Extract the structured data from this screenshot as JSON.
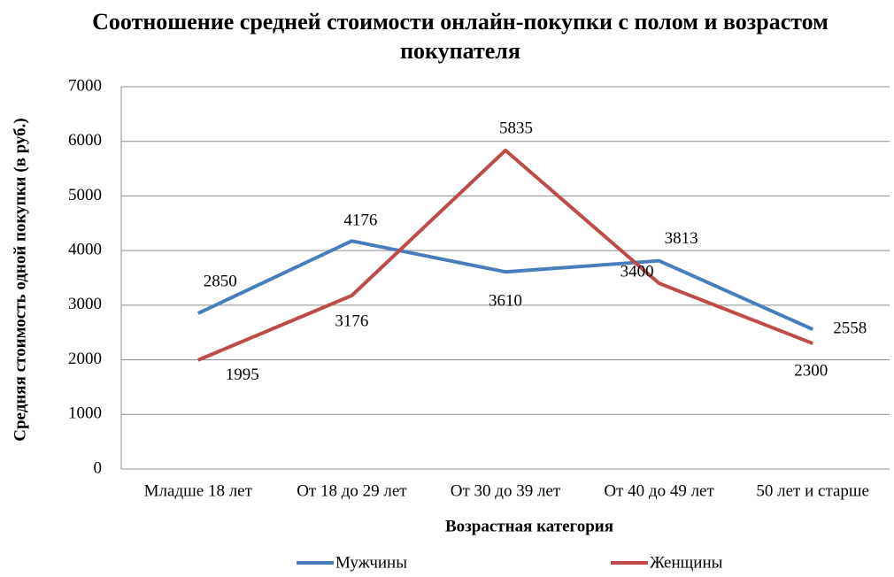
{
  "chart_data": {
    "type": "line",
    "title": "Соотношение средней стоимости онлайн-покупки с полом и возрастом покупателя",
    "x_label": "Возрастная категория",
    "y_label": "Средняя  стоимость одной покупки   (в руб.)",
    "categories": [
      "Младше 18 лет",
      "От 18 до 29 лет",
      "От 30 до 39 лет",
      "От 40 до 49 лет",
      "50 лет и старше"
    ],
    "series": [
      {
        "name": "Мужчины",
        "color": "#4a7ebb",
        "values": [
          2850,
          4176,
          3610,
          3813,
          2558
        ]
      },
      {
        "name": "Женщины",
        "color": "#be4b48",
        "values": [
          1995,
          3176,
          5835,
          3400,
          2300
        ]
      }
    ],
    "ylim": [
      0,
      7000
    ],
    "yticks": [
      0,
      1000,
      2000,
      3000,
      4000,
      5000,
      6000,
      7000
    ],
    "grid": true,
    "legend": "bottom"
  }
}
